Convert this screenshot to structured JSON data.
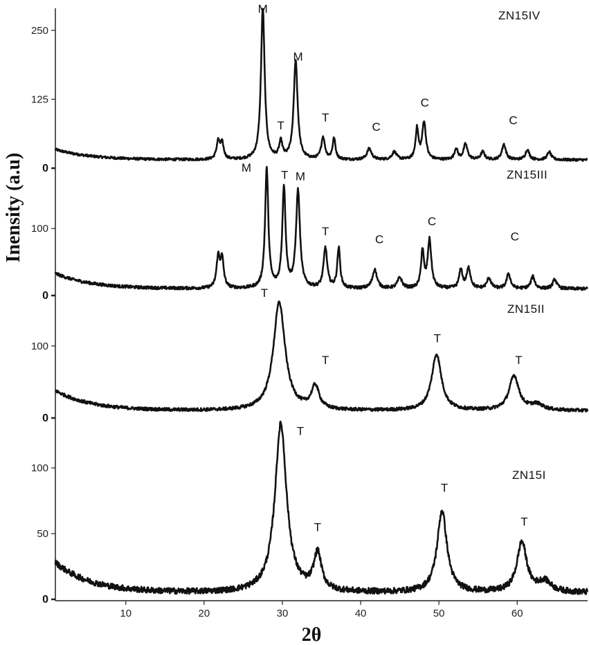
{
  "chart_data": {
    "type": "line",
    "xlabel": "2θ",
    "ylabel": "Inensity (a.u)",
    "xlim": [
      1,
      69
    ],
    "x_ticks": [
      "10",
      "20",
      "30",
      "40",
      "50",
      "60"
    ],
    "x_tick_values": [
      10,
      20,
      30,
      40,
      50,
      60
    ],
    "panels": [
      {
        "name": "ZN15IV",
        "ylim": [
          0,
          290
        ],
        "y_ticks": [
          {
            "value": 250,
            "label": "250",
            "bold": false
          },
          {
            "value": 125,
            "label": "125",
            "bold": false
          },
          {
            "value": 0,
            "label": "0",
            "bold": true
          }
        ],
        "baseline": 15,
        "start_level": 34,
        "peaks": [
          {
            "x": 21.8,
            "h": 32,
            "w": 0.25
          },
          {
            "x": 22.3,
            "h": 28,
            "w": 0.25
          },
          {
            "x": 27.5,
            "h": 275,
            "w": 0.28
          },
          {
            "x": 29.8,
            "h": 30,
            "w": 0.25
          },
          {
            "x": 31.7,
            "h": 180,
            "w": 0.3
          },
          {
            "x": 35.2,
            "h": 40,
            "w": 0.28
          },
          {
            "x": 36.6,
            "h": 38,
            "w": 0.22
          },
          {
            "x": 41.1,
            "h": 20,
            "w": 0.35
          },
          {
            "x": 44.3,
            "h": 14,
            "w": 0.35
          },
          {
            "x": 47.2,
            "h": 55,
            "w": 0.22
          },
          {
            "x": 48.1,
            "h": 68,
            "w": 0.28
          },
          {
            "x": 52.2,
            "h": 20,
            "w": 0.25
          },
          {
            "x": 53.4,
            "h": 28,
            "w": 0.3
          },
          {
            "x": 55.6,
            "h": 14,
            "w": 0.3
          },
          {
            "x": 58.3,
            "h": 28,
            "w": 0.3
          },
          {
            "x": 61.3,
            "h": 18,
            "w": 0.3
          },
          {
            "x": 64.1,
            "h": 14,
            "w": 0.3
          }
        ],
        "peak_labels": [
          {
            "text": "M",
            "x": 27.5,
            "y": 282
          },
          {
            "text": "M",
            "x": 32.0,
            "y": 195
          },
          {
            "text": "T",
            "x": 29.8,
            "y": 70
          },
          {
            "text": "T",
            "x": 35.5,
            "y": 85
          },
          {
            "text": "C",
            "x": 42.0,
            "y": 68
          },
          {
            "text": "C",
            "x": 48.2,
            "y": 112
          },
          {
            "text": "C",
            "x": 59.5,
            "y": 80
          }
        ]
      },
      {
        "name": "ZN15III",
        "ylim": [
          0,
          190
        ],
        "y_ticks": [
          {
            "value": 100,
            "label": "100",
            "bold": false
          },
          {
            "value": 0,
            "label": "0",
            "bold": true
          }
        ],
        "baseline": 10,
        "start_level": 33,
        "peaks": [
          {
            "x": 21.8,
            "h": 45,
            "w": 0.25
          },
          {
            "x": 22.3,
            "h": 42,
            "w": 0.25
          },
          {
            "x": 28.0,
            "h": 178,
            "w": 0.25
          },
          {
            "x": 30.2,
            "h": 150,
            "w": 0.25
          },
          {
            "x": 32.0,
            "h": 145,
            "w": 0.3
          },
          {
            "x": 35.5,
            "h": 60,
            "w": 0.28
          },
          {
            "x": 37.2,
            "h": 60,
            "w": 0.22
          },
          {
            "x": 41.8,
            "h": 28,
            "w": 0.35
          },
          {
            "x": 45.0,
            "h": 16,
            "w": 0.35
          },
          {
            "x": 47.9,
            "h": 55,
            "w": 0.22
          },
          {
            "x": 48.8,
            "h": 72,
            "w": 0.28
          },
          {
            "x": 52.8,
            "h": 28,
            "w": 0.25
          },
          {
            "x": 53.8,
            "h": 30,
            "w": 0.3
          },
          {
            "x": 56.4,
            "h": 16,
            "w": 0.3
          },
          {
            "x": 58.9,
            "h": 22,
            "w": 0.3
          },
          {
            "x": 62.0,
            "h": 18,
            "w": 0.3
          },
          {
            "x": 64.8,
            "h": 14,
            "w": 0.3
          }
        ],
        "peak_labels": [
          {
            "text": "M",
            "x": 25.4,
            "y": 185
          },
          {
            "text": "T",
            "x": 30.3,
            "y": 174
          },
          {
            "text": "M",
            "x": 32.3,
            "y": 172
          },
          {
            "text": "T",
            "x": 35.5,
            "y": 90
          },
          {
            "text": "C",
            "x": 42.4,
            "y": 78
          },
          {
            "text": "C",
            "x": 49.1,
            "y": 105
          },
          {
            "text": "C",
            "x": 59.7,
            "y": 82
          }
        ]
      },
      {
        "name": "ZN15II",
        "ylim": [
          0,
          170
        ],
        "y_ticks": [
          {
            "value": 100,
            "label": "100",
            "bold": false
          },
          {
            "value": 0,
            "label": "0",
            "bold": true
          }
        ],
        "baseline": 10,
        "start_level": 38,
        "peaks": [
          {
            "x": 29.6,
            "h": 150,
            "w": 0.9
          },
          {
            "x": 34.2,
            "h": 32,
            "w": 0.6
          },
          {
            "x": 49.7,
            "h": 78,
            "w": 0.75
          },
          {
            "x": 59.6,
            "h": 48,
            "w": 0.75
          },
          {
            "x": 62.5,
            "h": 8,
            "w": 1.0
          }
        ],
        "peak_labels": [
          {
            "text": "T",
            "x": 27.7,
            "y": 168
          },
          {
            "text": "T",
            "x": 35.5,
            "y": 75
          },
          {
            "text": "T",
            "x": 49.8,
            "y": 105
          },
          {
            "text": "T",
            "x": 60.2,
            "y": 75
          }
        ]
      },
      {
        "name": "ZN15I",
        "ylim": [
          0,
          138
        ],
        "y_ticks": [
          {
            "value": 100,
            "label": "100",
            "bold": false
          },
          {
            "value": 50,
            "label": "50",
            "bold": false
          },
          {
            "value": 0,
            "label": "0",
            "bold": true
          }
        ],
        "baseline": 5,
        "start_level": 28,
        "peaks": [
          {
            "x": 29.8,
            "h": 128,
            "w": 0.9
          },
          {
            "x": 34.5,
            "h": 28,
            "w": 0.6
          },
          {
            "x": 50.4,
            "h": 62,
            "w": 0.75
          },
          {
            "x": 60.6,
            "h": 38,
            "w": 0.75
          },
          {
            "x": 63.5,
            "h": 8,
            "w": 1.0
          }
        ],
        "peak_labels": [
          {
            "text": "T",
            "x": 32.3,
            "y": 125
          },
          {
            "text": "T",
            "x": 34.5,
            "y": 52
          },
          {
            "text": "T",
            "x": 50.7,
            "y": 82
          },
          {
            "text": "T",
            "x": 60.9,
            "y": 56
          }
        ]
      }
    ]
  },
  "title": "",
  "colors": {
    "line": "#111111",
    "axis": "#222222",
    "background": "#ffffff"
  }
}
